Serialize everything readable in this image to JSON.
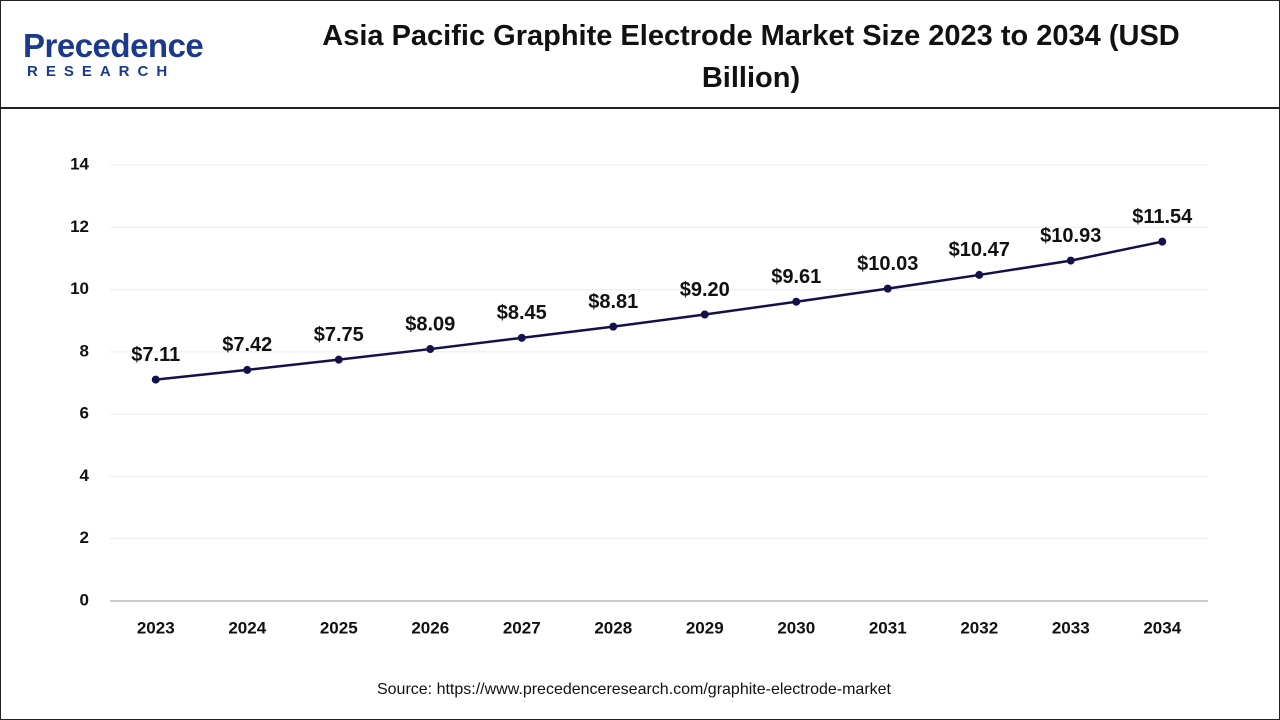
{
  "logo": {
    "name": "Precedence",
    "sub": "RESEARCH"
  },
  "chart_data": {
    "type": "line",
    "title": "Asia Pacific Graphite Electrode Market Size 2023 to 2034 (USD Billion)",
    "categories": [
      "2023",
      "2024",
      "2025",
      "2026",
      "2027",
      "2028",
      "2029",
      "2030",
      "2031",
      "2032",
      "2033",
      "2034"
    ],
    "values": [
      7.11,
      7.42,
      7.75,
      8.09,
      8.45,
      8.81,
      9.2,
      9.61,
      10.03,
      10.47,
      10.93,
      11.54
    ],
    "value_labels": [
      "$7.11",
      "$7.42",
      "$7.75",
      "$8.09",
      "$8.45",
      "$8.81",
      "$9.20",
      "$9.61",
      "$10.03",
      "$10.47",
      "$10.93",
      "$11.54"
    ],
    "color": "#14114a",
    "ylim": [
      0,
      14
    ],
    "yticks": [
      0,
      2,
      4,
      6,
      8,
      10,
      12,
      14
    ],
    "grid": true,
    "source": "Source: https://www.precedenceresearch.com/graphite-electrode-market"
  }
}
